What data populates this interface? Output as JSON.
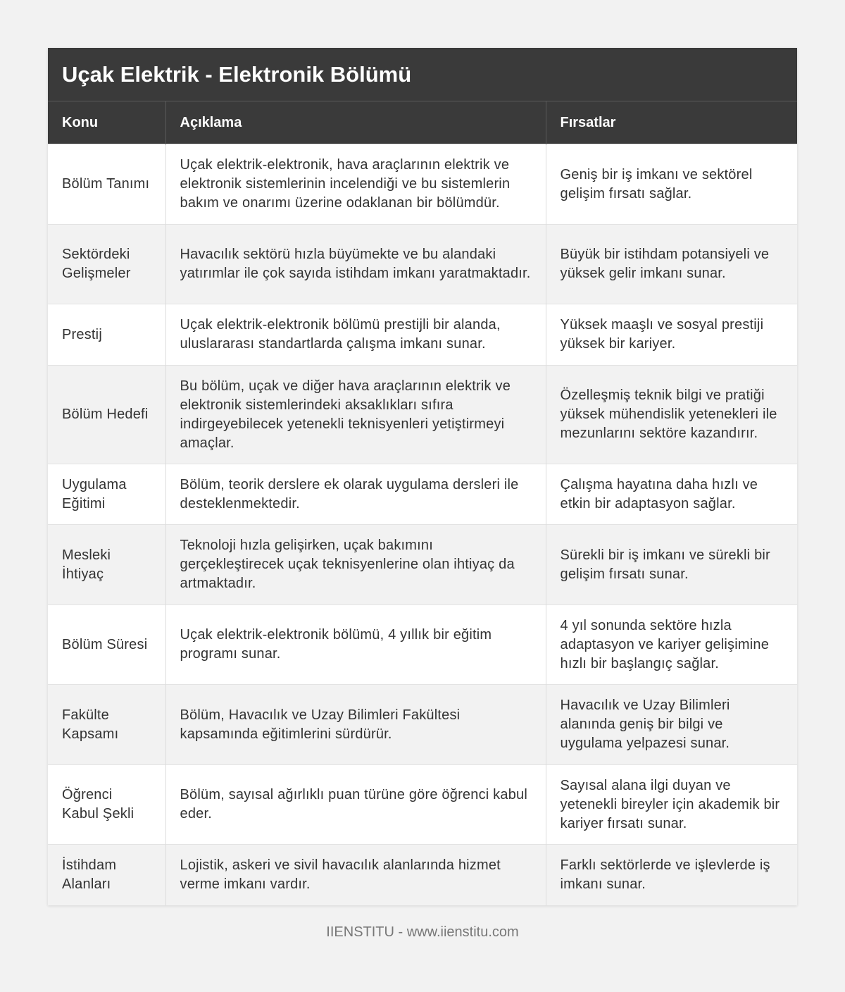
{
  "header": {
    "title": "Uçak Elektrik - Elektronik Bölümü"
  },
  "table": {
    "columns": [
      "Konu",
      "Açıklama",
      "Fırsatlar"
    ],
    "rows": [
      [
        "Bölüm Tanımı",
        "Uçak elektrik-elektronik, hava araçlarının elektrik ve elektronik sistemlerinin incelendiği ve bu sistemlerin bakım ve onarımı üzerine odaklanan bir bölümdür.",
        "Geniş bir iş imkanı ve sektörel gelişim fırsatı sağlar."
      ],
      [
        "Sektördeki Gelişmeler",
        "Havacılık sektörü hızla büyümekte ve bu alandaki yatırımlar ile çok sayıda istihdam imkanı yaratmaktadır.",
        "Büyük bir istihdam potansiyeli ve yüksek gelir imkanı sunar."
      ],
      [
        "Prestij",
        "Uçak elektrik-elektronik bölümü prestijli bir alanda, uluslararası standartlarda çalışma imkanı sunar.",
        "Yüksek maaşlı ve sosyal prestiji yüksek bir kariyer."
      ],
      [
        "Bölüm Hedefi",
        "Bu bölüm, uçak ve diğer hava araçlarının elektrik ve elektronik sistemlerindeki aksaklıkları sıfıra indirgeyebilecek yetenekli teknisyenleri yetiştirmeyi amaçlar.",
        "Özelleşmiş teknik bilgi ve pratiği yüksek mühendislik yetenekleri ile mezunlarını sektöre kazandırır."
      ],
      [
        "Uygulama Eğitimi",
        "Bölüm, teorik derslere ek olarak uygulama dersleri ile desteklenmektedir.",
        "Çalışma hayatına daha hızlı ve etkin bir adaptasyon sağlar."
      ],
      [
        "Mesleki İhtiyaç",
        "Teknoloji hızla gelişirken, uçak bakımını gerçekleştirecek uçak teknisyenlerine olan ihtiyaç da artmaktadır.",
        "Sürekli bir iş imkanı ve sürekli bir gelişim fırsatı sunar."
      ],
      [
        "Bölüm Süresi",
        "Uçak elektrik-elektronik bölümü, 4 yıllık bir eğitim programı sunar.",
        "4 yıl sonunda sektöre hızla adaptasyon ve kariyer gelişimine hızlı bir başlangıç sağlar."
      ],
      [
        "Fakülte Kapsamı",
        "Bölüm, Havacılık ve Uzay Bilimleri Fakültesi kapsamında eğitimlerini sürdürür.",
        "Havacılık ve Uzay Bilimleri alanında geniş bir bilgi ve uygulama yelpazesi sunar."
      ],
      [
        "Öğrenci Kabul Şekli",
        "Bölüm, sayısal ağırlıklı puan türüne göre öğrenci kabul eder.",
        "Sayısal alana ilgi duyan ve yetenekli bireyler için akademik bir kariyer fırsatı sunar."
      ],
      [
        "İstihdam Alanları",
        "Lojistik, askeri ve sivil havacılık alanlarında hizmet verme imkanı vardır.",
        "Farklı sektörlerde ve işlevlerde iş imkanı sunar."
      ]
    ]
  },
  "footer": {
    "text": "IIENSTITU - www.iienstitu.com"
  }
}
